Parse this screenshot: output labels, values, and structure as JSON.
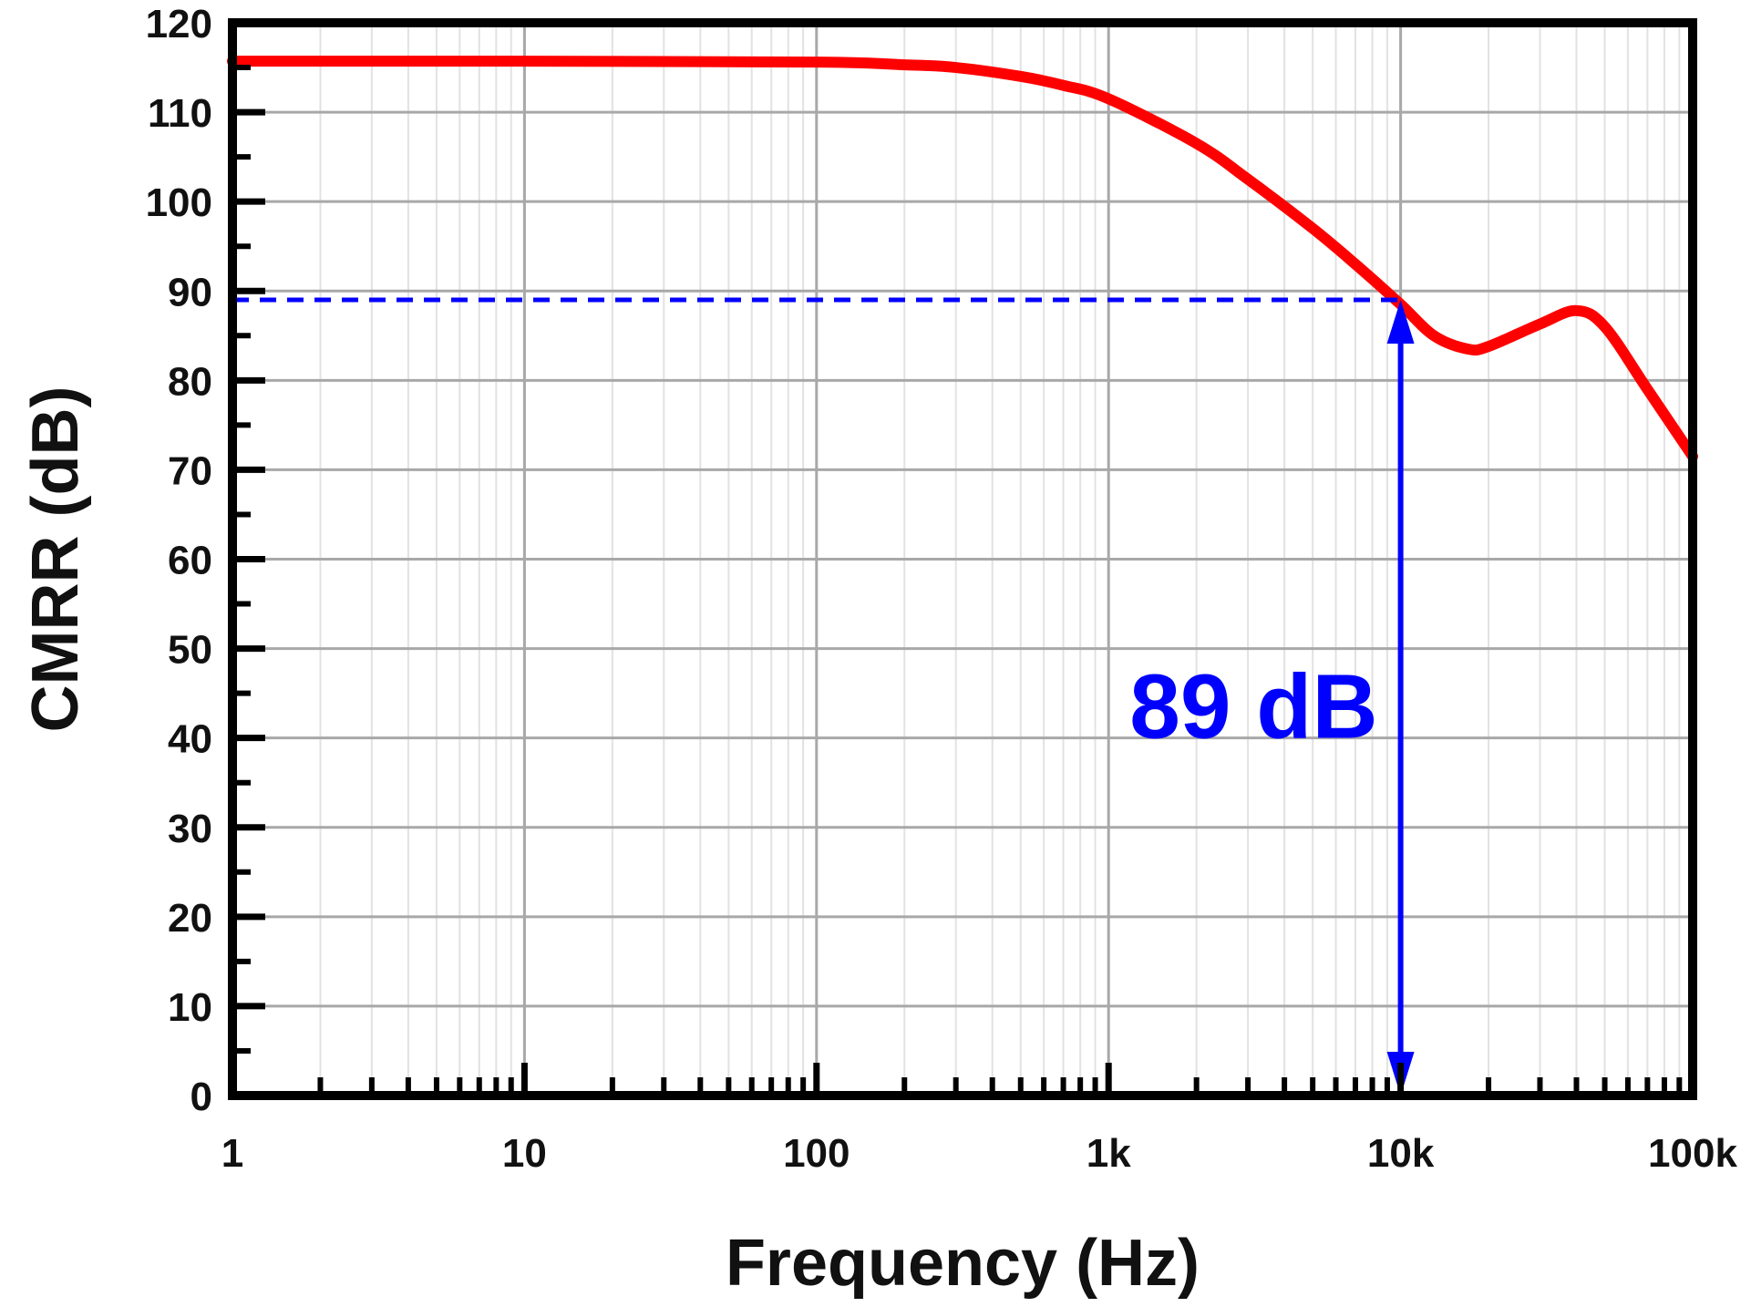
{
  "chart_data": {
    "type": "line",
    "title": "",
    "xlabel": "Frequency (Hz)",
    "ylabel": "CMRR (dB)",
    "xscale": "log",
    "xlim": [
      1,
      100000
    ],
    "ylim": [
      0,
      120
    ],
    "grid": true,
    "legend": "none",
    "x_ticks": [
      1,
      10,
      100,
      1000,
      10000,
      100000
    ],
    "x_tick_labels": [
      "1",
      "10",
      "100",
      "1k",
      "10k",
      "100k"
    ],
    "y_ticks": [
      0,
      10,
      20,
      30,
      40,
      50,
      60,
      70,
      80,
      90,
      100,
      110,
      120
    ],
    "y_tick_labels": [
      "0",
      "10",
      "20",
      "30",
      "40",
      "50",
      "60",
      "70",
      "80",
      "90",
      "100",
      "110",
      "120"
    ],
    "series": [
      {
        "color": "#ff0000",
        "x": [
          1,
          10,
          100,
          200,
          300,
          500,
          700,
          1000,
          2000,
          3000,
          5000,
          7000,
          10000,
          13000,
          17000,
          20000,
          30000,
          40000,
          50000,
          70000,
          100000
        ],
        "y": [
          115.7,
          115.7,
          115.6,
          115.3,
          115.0,
          114.0,
          113.0,
          111.5,
          106.5,
          102.5,
          97.0,
          93.0,
          88.5,
          85.0,
          83.5,
          83.8,
          86.3,
          87.8,
          86.0,
          79.0,
          71.5
        ]
      }
    ],
    "annotations": [
      {
        "text": "89 dB",
        "value": 89,
        "at_x": 10000,
        "color": "#0000ff",
        "style": "dashed horizontal reference line at 89 dB and double-headed vertical arrow at 10k from 0 to 89 dB"
      }
    ]
  }
}
